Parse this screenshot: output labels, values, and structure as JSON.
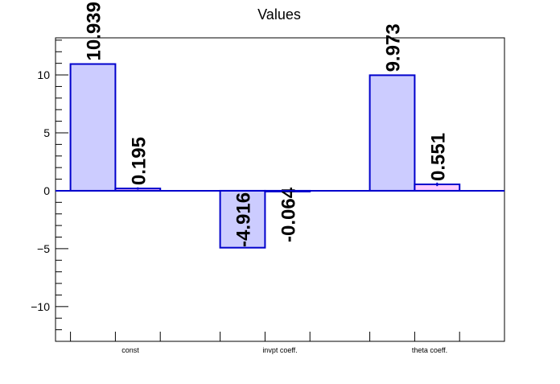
{
  "chart_data": {
    "type": "bar",
    "title": "Values",
    "xlabel": "",
    "ylabel": "",
    "ylim": [
      -13,
      13.2
    ],
    "yticks": [
      -10,
      -5,
      0,
      5,
      10
    ],
    "ytick_labels": [
      "−10",
      "−5",
      "0",
      "5",
      "10"
    ],
    "categories": [
      "const",
      "invpt coeff.",
      "theta coeff."
    ],
    "series": [
      {
        "values": [
          10.939,
          -4.916,
          9.973
        ],
        "labels": [
          "10.939",
          "-4.916",
          "9.973"
        ],
        "fill": "#ccccff",
        "stroke": "#0000cc"
      },
      {
        "values": [
          0.195,
          -0.064,
          0.551
        ],
        "labels": [
          "0.195",
          "-0.064",
          "0.551"
        ],
        "errors": [
          0.1,
          0.03,
          0.15
        ],
        "fill": "#ffccff",
        "stroke": "#0000cc"
      }
    ],
    "grid": false,
    "legend": "none"
  }
}
